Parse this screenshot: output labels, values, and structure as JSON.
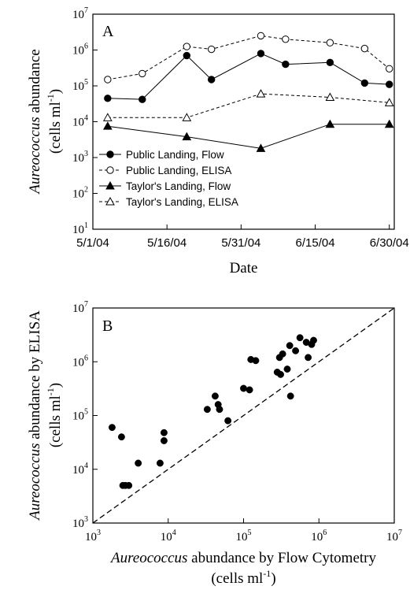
{
  "chart_data": [
    {
      "type": "line",
      "panel_label": "A",
      "xlabel": "Date",
      "ylabel": {
        "italic": "Aureococcus",
        "rest": " abundance",
        "line2": "(cells ml",
        "sup": "-1",
        "close": ")"
      },
      "y_scale": "log",
      "ylim": [
        10,
        10000000
      ],
      "y_ticks": [
        1,
        2,
        3,
        4,
        5,
        6,
        7
      ],
      "x_ticks": [
        "5/1/04",
        "5/16/04",
        "5/31/04",
        "6/15/04",
        "6/30/04"
      ],
      "xlim": [
        "2004-05-01",
        "2004-07-01"
      ],
      "legend_position": "bottom-left",
      "series": [
        {
          "name": "Public Landing, Flow",
          "marker": "circle-filled",
          "line": "solid",
          "x": [
            "2004-05-04",
            "2004-05-11",
            "2004-05-20",
            "2004-05-25",
            "2004-06-04",
            "2004-06-09",
            "2004-06-18",
            "2004-06-25",
            "2004-06-30"
          ],
          "y": [
            45000,
            42000,
            700000,
            150000,
            800000,
            400000,
            450000,
            120000,
            110000
          ]
        },
        {
          "name": "Public Landing, ELISA",
          "marker": "circle-open",
          "line": "dashed",
          "x": [
            "2004-05-04",
            "2004-05-11",
            "2004-05-20",
            "2004-05-25",
            "2004-06-04",
            "2004-06-09",
            "2004-06-18",
            "2004-06-25",
            "2004-06-30"
          ],
          "y": [
            150000,
            220000,
            1250000,
            1050000,
            2500000,
            2000000,
            1600000,
            1100000,
            300000
          ]
        },
        {
          "name": "Taylor's Landing, Flow",
          "marker": "triangle-filled",
          "line": "solid",
          "x": [
            "2004-05-04",
            "2004-05-20",
            "2004-06-04",
            "2004-06-18",
            "2004-06-30"
          ],
          "y": [
            7500,
            3800,
            1800,
            8500,
            8500
          ]
        },
        {
          "name": "Taylor's Landing, ELISA",
          "marker": "triangle-open",
          "line": "dashed",
          "x": [
            "2004-05-04",
            "2004-05-20",
            "2004-06-04",
            "2004-06-18",
            "2004-06-30"
          ],
          "y": [
            13000,
            13000,
            60000,
            48000,
            34000
          ]
        }
      ]
    },
    {
      "type": "scatter",
      "panel_label": "B",
      "xlabel": {
        "italic": "Aureococcus",
        "rest": " abundance by Flow Cytometry",
        "line2": "(cells ml",
        "sup": "-1",
        "close": ")"
      },
      "ylabel": {
        "italic": "Aureococcus",
        "rest": " abundance by ELISA",
        "line2": "(cells ml",
        "sup": "-1",
        "close": ")"
      },
      "x_scale": "log",
      "y_scale": "log",
      "xlim": [
        1000,
        10000000
      ],
      "ylim": [
        1000,
        10000000
      ],
      "x_ticks": [
        3,
        4,
        5,
        6,
        7
      ],
      "y_ticks": [
        3,
        4,
        5,
        6,
        7
      ],
      "reference_line": "1:1 (dashed)",
      "points": [
        [
          1800,
          60000
        ],
        [
          2400,
          40000
        ],
        [
          2500,
          5000
        ],
        [
          2700,
          5000
        ],
        [
          3000,
          5000
        ],
        [
          4000,
          13000
        ],
        [
          7800,
          13000
        ],
        [
          8800,
          48000
        ],
        [
          8800,
          34000
        ],
        [
          33000,
          130000
        ],
        [
          42000,
          230000
        ],
        [
          46000,
          160000
        ],
        [
          48000,
          130000
        ],
        [
          62000,
          80000
        ],
        [
          100000,
          320000
        ],
        [
          120000,
          300000
        ],
        [
          125000,
          1100000
        ],
        [
          145000,
          1050000
        ],
        [
          280000,
          640000
        ],
        [
          310000,
          580000
        ],
        [
          330000,
          1400000
        ],
        [
          300000,
          1200000
        ],
        [
          380000,
          730000
        ],
        [
          410000,
          2000000
        ],
        [
          420000,
          230000
        ],
        [
          490000,
          1600000
        ],
        [
          560000,
          2800000
        ],
        [
          680000,
          2300000
        ],
        [
          720000,
          1200000
        ],
        [
          800000,
          2100000
        ],
        [
          850000,
          2500000
        ]
      ]
    }
  ]
}
